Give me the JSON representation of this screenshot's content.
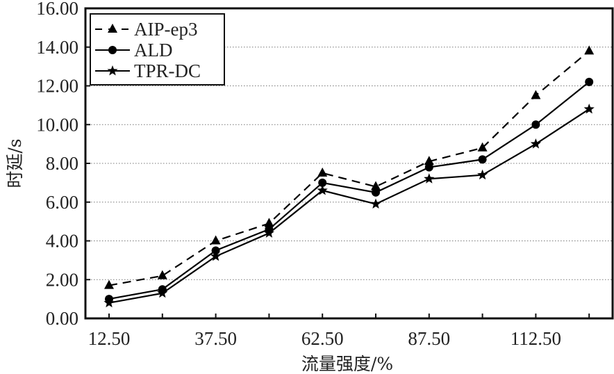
{
  "chart_data": {
    "type": "line",
    "title": "",
    "xlabel": "流量强度/%",
    "ylabel": "时延/s",
    "x": [
      12.5,
      25,
      37.5,
      50,
      62.5,
      75,
      87.5,
      100,
      112.5,
      125
    ],
    "xlim": [
      6.25,
      129.5
    ],
    "ylim": [
      0,
      16
    ],
    "xticks": [
      12.5,
      25,
      37.5,
      50,
      62.5,
      75,
      87.5,
      100,
      112.5,
      125
    ],
    "xtick_labels": [
      "12.50",
      "",
      "37.50",
      "",
      "62.50",
      "",
      "87.50",
      "",
      "112.50",
      ""
    ],
    "yticks": [
      0,
      2,
      4,
      6,
      8,
      10,
      12,
      14,
      16
    ],
    "ytick_labels": [
      "0.00",
      "2.00",
      "4.00",
      "6.00",
      "8.00",
      "10.00",
      "12.00",
      "14.00",
      "16.00"
    ],
    "grid": "horizontal-dotted",
    "legend_position": "top-left",
    "series": [
      {
        "name": "AIP-ep3",
        "marker": "triangle",
        "line": "dashed",
        "values": [
          1.7,
          2.2,
          4.0,
          4.9,
          7.5,
          6.8,
          8.1,
          8.8,
          11.5,
          13.8
        ]
      },
      {
        "name": "ALD",
        "marker": "circle",
        "line": "solid",
        "values": [
          1.0,
          1.5,
          3.5,
          4.6,
          7.0,
          6.5,
          7.8,
          8.2,
          10.0,
          12.2
        ]
      },
      {
        "name": "TPR-DC",
        "marker": "star",
        "line": "solid",
        "values": [
          0.8,
          1.3,
          3.2,
          4.4,
          6.6,
          5.9,
          7.2,
          7.4,
          9.0,
          10.8
        ]
      }
    ]
  }
}
